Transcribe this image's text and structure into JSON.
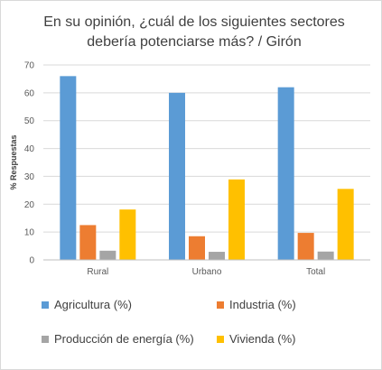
{
  "chart_data": {
    "type": "bar",
    "title": "En su opinión, ¿cuál de los siguientes sectores debería potenciarse más? / Girón",
    "title_line1": "En su opinión, ¿cuál de los siguientes sectores",
    "title_line2": "debería potenciarse más? / Girón",
    "ylabel": "% Respuestas",
    "xlabel": "",
    "ylim": [
      0,
      70
    ],
    "yticks": [
      0,
      10,
      20,
      30,
      40,
      50,
      60,
      70
    ],
    "grid": true,
    "legend_placement": "bottom",
    "categories": [
      "Rural",
      "Urbano",
      "Total"
    ],
    "series": [
      {
        "name": "Agricultura (%)",
        "color": "#5b9bd5",
        "values": [
          66,
          60,
          62
        ]
      },
      {
        "name": "Industria (%)",
        "color": "#ed7d31",
        "values": [
          12.5,
          8.5,
          9.7
        ]
      },
      {
        "name": "Producción de energía (%)",
        "color": "#a5a5a5",
        "values": [
          3.3,
          2.9,
          3
        ]
      },
      {
        "name": "Vivienda (%)",
        "color": "#ffc000",
        "values": [
          18.1,
          28.9,
          25.5
        ]
      }
    ]
  }
}
